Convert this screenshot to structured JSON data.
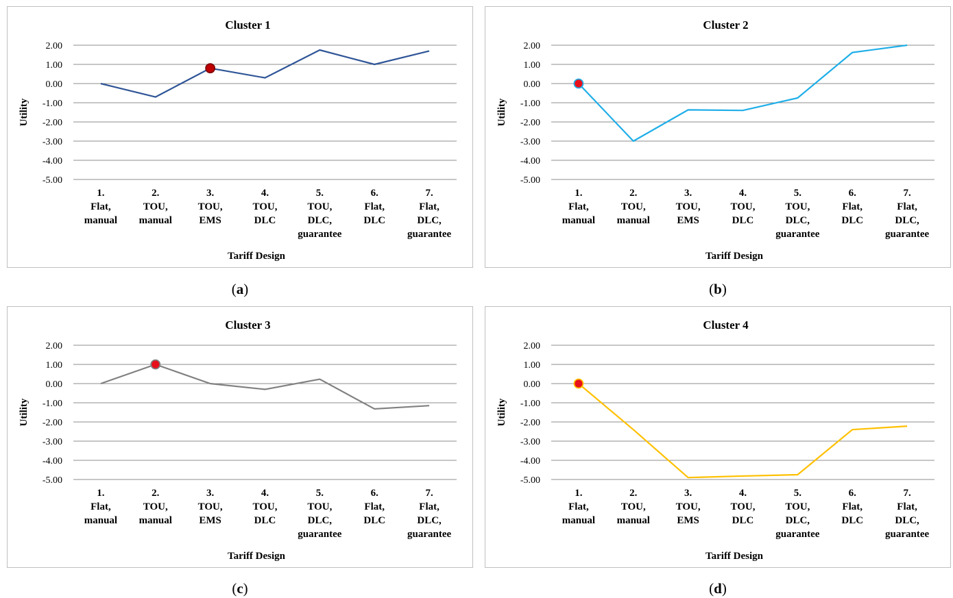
{
  "chart_data": [
    {
      "type": "line",
      "title": "Cluster 1",
      "xlabel": "Tariff Design",
      "ylabel": "Utility",
      "ylim": [
        -5,
        2
      ],
      "yticks": [
        "2.00",
        "1.00",
        "0.00",
        "-1.00",
        "-2.00",
        "-3.00",
        "-4.00",
        "-5.00"
      ],
      "categories": [
        [
          "1.",
          "Flat,",
          "manual"
        ],
        [
          "2.",
          "TOU,",
          "manual"
        ],
        [
          "3.",
          "TOU,",
          "EMS"
        ],
        [
          "4.",
          "TOU,",
          "DLC"
        ],
        [
          "5.",
          "TOU,",
          "DLC,",
          "guarantee"
        ],
        [
          "6.",
          "Flat,",
          "DLC"
        ],
        [
          "7.",
          "Flat,",
          "DLC,",
          "guarantee"
        ]
      ],
      "values": [
        0.0,
        -0.7,
        0.8,
        0.3,
        1.75,
        1.0,
        1.7
      ],
      "highlight_index": 2,
      "line_color": "#2f5597",
      "marker_fill": "#c00000",
      "marker_stroke": "#7f0000",
      "grid": true,
      "caption": "a"
    },
    {
      "type": "line",
      "title": "Cluster 2",
      "xlabel": "Tariff Design",
      "ylabel": "Utility",
      "ylim": [
        -5,
        2
      ],
      "yticks": [
        "2.00",
        "1.00",
        "0.00",
        "-1.00",
        "-2.00",
        "-3.00",
        "-4.00",
        "-5.00"
      ],
      "categories": [
        [
          "1.",
          "Flat,",
          "manual"
        ],
        [
          "2.",
          "TOU,",
          "manual"
        ],
        [
          "3.",
          "TOU,",
          "EMS"
        ],
        [
          "4.",
          "TOU,",
          "DLC"
        ],
        [
          "5.",
          "TOU,",
          "DLC,",
          "guarantee"
        ],
        [
          "6.",
          "Flat,",
          "DLC"
        ],
        [
          "7.",
          "Flat,",
          "DLC,",
          "guarantee"
        ]
      ],
      "values": [
        0.0,
        -3.0,
        -1.37,
        -1.4,
        -0.75,
        1.62,
        2.0
      ],
      "highlight_index": 0,
      "line_color": "#1eaee8",
      "marker_fill": "#e8101a",
      "marker_stroke": "#1eaee8",
      "grid": true,
      "caption": "b"
    },
    {
      "type": "line",
      "title": "Cluster 3",
      "xlabel": "Tariff Design",
      "ylabel": "Utility",
      "ylim": [
        -5,
        2
      ],
      "yticks": [
        "2.00",
        "1.00",
        "0.00",
        "-1.00",
        "-2.00",
        "-3.00",
        "-4.00",
        "-5.00"
      ],
      "categories": [
        [
          "1.",
          "Flat,",
          "manual"
        ],
        [
          "2.",
          "TOU,",
          "manual"
        ],
        [
          "3.",
          "TOU,",
          "EMS"
        ],
        [
          "4.",
          "TOU,",
          "DLC"
        ],
        [
          "5.",
          "TOU,",
          "DLC,",
          "guarantee"
        ],
        [
          "6.",
          "Flat,",
          "DLC"
        ],
        [
          "7.",
          "Flat,",
          "DLC,",
          "guarantee"
        ]
      ],
      "values": [
        0.0,
        1.0,
        0.0,
        -0.3,
        0.23,
        -1.32,
        -1.15
      ],
      "highlight_index": 1,
      "line_color": "#808080",
      "marker_fill": "#e8101a",
      "marker_stroke": "#808080",
      "grid": true,
      "caption": "c"
    },
    {
      "type": "line",
      "title": "Cluster 4",
      "xlabel": "Tariff Design",
      "ylabel": "Utility",
      "ylim": [
        -5,
        2
      ],
      "yticks": [
        "2.00",
        "1.00",
        "0.00",
        "-1.00",
        "-2.00",
        "-3.00",
        "-4.00",
        "-5.00"
      ],
      "categories": [
        [
          "1.",
          "Flat,",
          "manual"
        ],
        [
          "2.",
          "TOU,",
          "manual"
        ],
        [
          "3.",
          "TOU,",
          "EMS"
        ],
        [
          "4.",
          "TOU,",
          "DLC"
        ],
        [
          "5.",
          "TOU,",
          "DLC,",
          "guarantee"
        ],
        [
          "6.",
          "Flat,",
          "DLC"
        ],
        [
          "7.",
          "Flat,",
          "DLC,",
          "guarantee"
        ]
      ],
      "values": [
        0.0,
        -2.4,
        -4.9,
        -4.82,
        -4.75,
        -2.4,
        -2.22
      ],
      "highlight_index": 0,
      "line_color": "#ffc000",
      "marker_fill": "#e8101a",
      "marker_stroke": "#ffc000",
      "grid": true,
      "caption": "d"
    }
  ]
}
